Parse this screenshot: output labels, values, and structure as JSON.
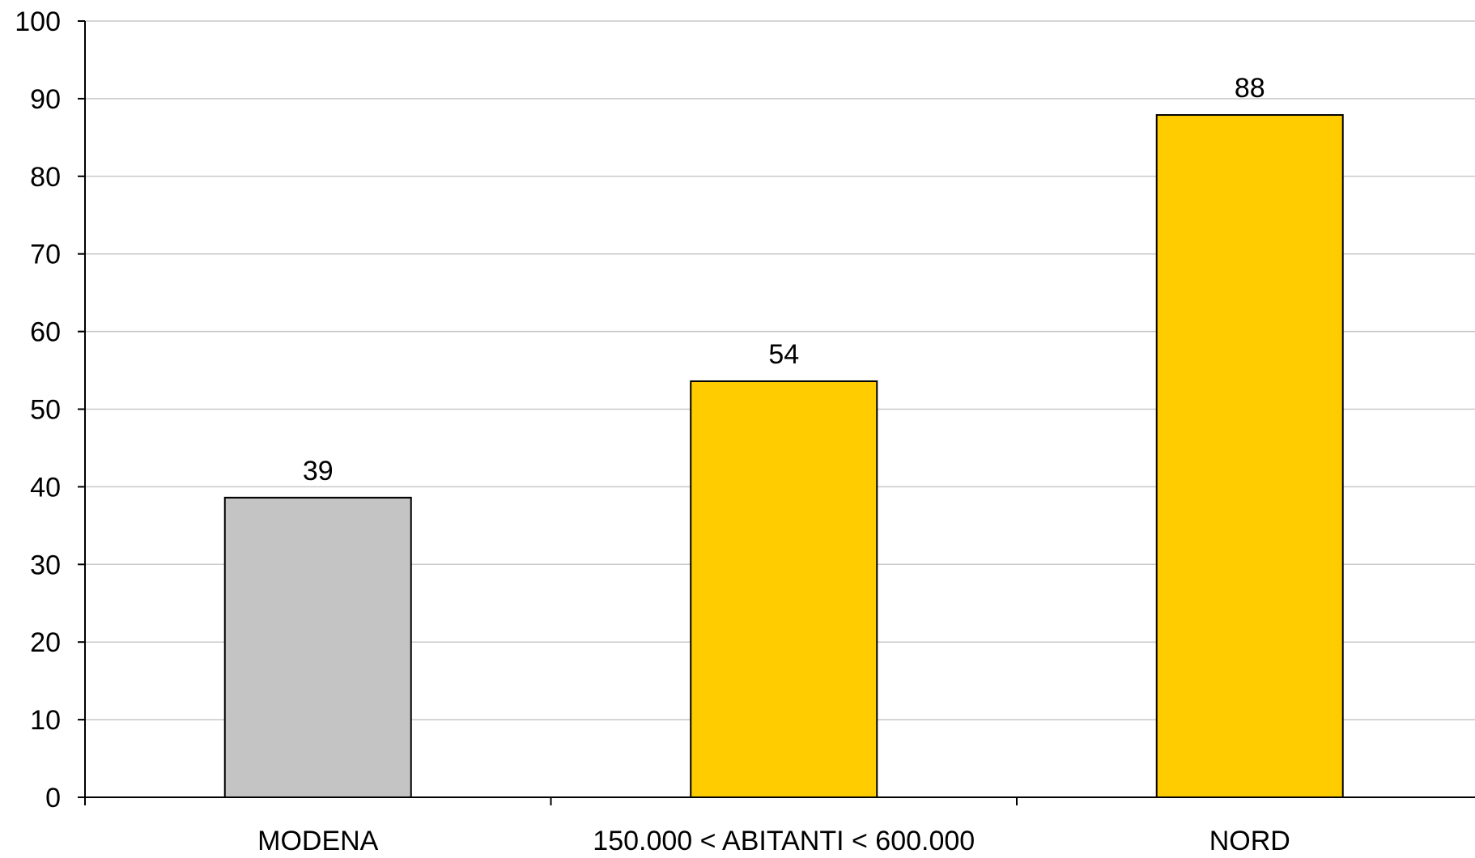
{
  "chart_data": {
    "type": "bar",
    "title": "",
    "xlabel": "",
    "ylabel": "",
    "categories": [
      "MODENA",
      "150.000 < ABITANTI < 600.000",
      "NORD"
    ],
    "values": [
      39,
      54,
      88
    ],
    "plotted_values": [
      38.6,
      53.6,
      87.9
    ],
    "data_labels": [
      "39",
      "54",
      "88"
    ],
    "bar_colors": [
      "#c4c4c4",
      "#ffcc00",
      "#ffcc00"
    ],
    "bar_border_color": "#000000",
    "ylim": [
      0,
      100
    ],
    "y_ticks": [
      0,
      10,
      20,
      30,
      40,
      50,
      60,
      70,
      80,
      90,
      100
    ],
    "grid": true,
    "grid_color": "#c8c8c8",
    "axis_color": "#000000",
    "legend": "none"
  }
}
